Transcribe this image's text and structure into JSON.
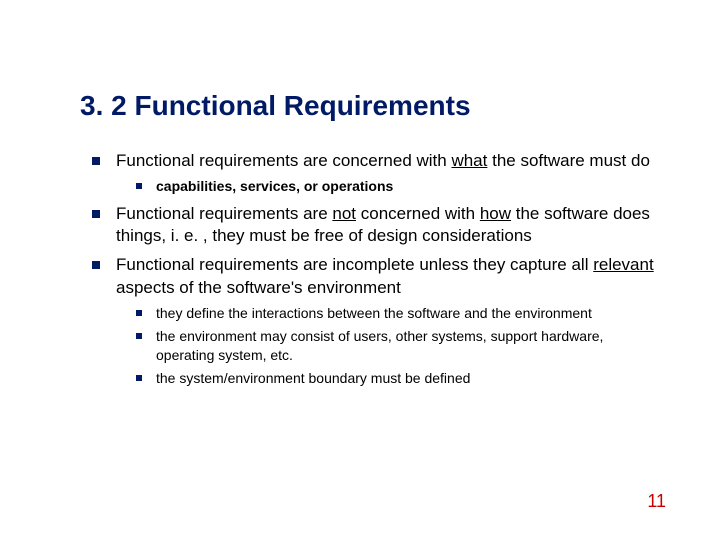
{
  "title": "3. 2 Functional Requirements",
  "bullets": {
    "item1_pre": "Functional requirements are concerned with ",
    "item1_u": "what",
    "item1_post": " the software must do",
    "item1_sub1": "capabilities, services, or operations",
    "item2_pre": "Functional requirements are ",
    "item2_u1": "not",
    "item2_mid": " concerned with ",
    "item2_u2": "how",
    "item2_post": " the software does things, i. e. , they must be free of design considerations",
    "item3_pre": "Functional requirements are incomplete unless they capture all ",
    "item3_u": "relevant",
    "item3_post": " aspects of the software's environment",
    "item3_sub1": "they define the interactions between the software and the environment",
    "item3_sub2": "the environment may consist of users, other systems, support hardware, operating system, etc.",
    "item3_sub3": "the system/environment boundary must be defined"
  },
  "page_number": "11",
  "colors": {
    "title": "#001a66",
    "bullet": "#001a66",
    "pagenum": "#cc0000",
    "text": "#000000",
    "background": "#ffffff"
  }
}
